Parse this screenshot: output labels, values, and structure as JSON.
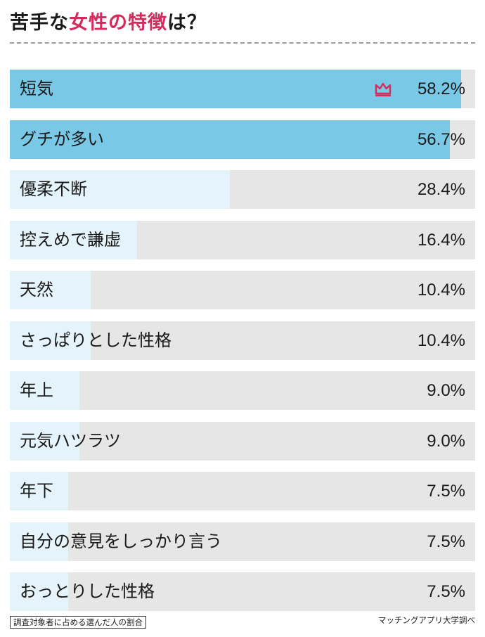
{
  "title": {
    "part1": "苦手な",
    "highlight": "女性の特徴",
    "part2": "は？"
  },
  "footnote": "調査対象者に占める選んだ人の割合",
  "source": "マッチングアプリ大学調べ",
  "colors": {
    "top_bar": "#79c9e6",
    "light_bar": "#e4f4fa",
    "track": "#e6e6e6",
    "accent": "#d42a5c"
  },
  "icons": {
    "top_rank": "crown-icon"
  },
  "chart_data": {
    "type": "bar",
    "orientation": "horizontal",
    "xlim": [
      0,
      60
    ],
    "categories": [
      "短気",
      "グチが多い",
      "優柔不断",
      "控えめで謙虚",
      "天然",
      "さっぱりとした性格",
      "年上",
      "元気ハツラツ",
      "年下",
      "自分の意見をしっかり言う",
      "おっとりした性格"
    ],
    "values": [
      58.2,
      56.7,
      28.4,
      16.4,
      10.4,
      10.4,
      9.0,
      9.0,
      7.5,
      7.5,
      7.5
    ],
    "value_labels": [
      "58.2%",
      "56.7%",
      "28.4%",
      "16.4%",
      "10.4%",
      "10.4%",
      "9.0%",
      "9.0%",
      "7.5%",
      "7.5%",
      "7.5%"
    ]
  }
}
